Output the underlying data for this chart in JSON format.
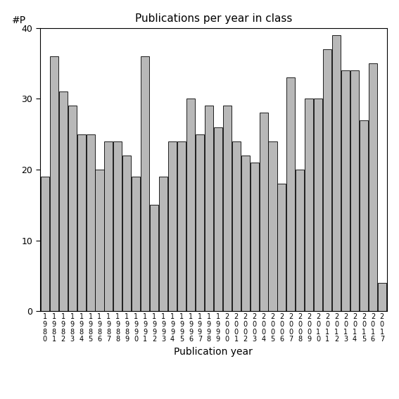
{
  "title": "Publications per year in class",
  "xlabel": "Publication year",
  "ylabel": "#P",
  "bar_color": "#b8b8b8",
  "edge_color": "#000000",
  "background_color": "#ffffff",
  "ylim": [
    0,
    40
  ],
  "yticks": [
    0,
    10,
    20,
    30,
    40
  ],
  "categories": [
    "1980",
    "1981",
    "1982",
    "1983",
    "1984",
    "1985",
    "1986",
    "1987",
    "1988",
    "1989",
    "1990",
    "1991",
    "1992",
    "1993",
    "1994",
    "1995",
    "1996",
    "1997",
    "1998",
    "1999",
    "2000",
    "2001",
    "2002",
    "2003",
    "2004",
    "2005",
    "2006",
    "2007",
    "2008",
    "2009",
    "2010",
    "2011",
    "2012",
    "2013",
    "2014",
    "2015",
    "2016",
    "2017"
  ],
  "values": [
    19,
    36,
    31,
    29,
    25,
    25,
    20,
    24,
    24,
    22,
    19,
    36,
    15,
    19,
    24,
    24,
    30,
    25,
    29,
    26,
    29,
    24,
    22,
    21,
    28,
    24,
    18,
    33,
    20,
    30,
    30,
    37,
    39,
    34,
    34,
    27,
    35,
    4
  ]
}
